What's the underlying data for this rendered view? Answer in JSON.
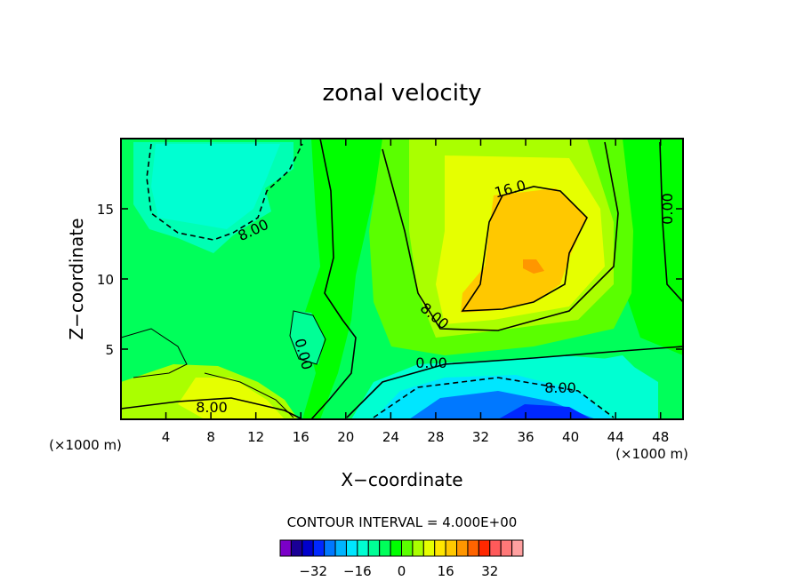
{
  "chart_data": {
    "type": "contour",
    "title": "zonal velocity",
    "xlabel": "X−coordinate",
    "ylabel": "Z−coordinate",
    "x_unit_left": "(×1000 m)",
    "x_unit_right": "(×1000 m)",
    "xlim": [
      0,
      50
    ],
    "ylim": [
      0,
      20
    ],
    "x_ticks": [
      4,
      8,
      12,
      16,
      20,
      24,
      28,
      32,
      36,
      40,
      44,
      48
    ],
    "y_ticks": [
      5,
      10,
      15
    ],
    "contour_interval_text": "CONTOUR INTERVAL = 4.000E+00",
    "contour_labels": [
      {
        "text": "16.0",
        "x": 33.8,
        "y": 16.0
      },
      {
        "text": "8.00",
        "x": 12.0,
        "y": 13.5
      },
      {
        "text": "8.00",
        "x": 27.2,
        "y": 7.3
      },
      {
        "text": "0.00",
        "x": 16.0,
        "y": 5.0
      },
      {
        "text": "0.00",
        "x": 27.6,
        "y": 4.0
      },
      {
        "text": "0.00",
        "x": 48.6,
        "y": 15.7
      },
      {
        "text": "8.00",
        "x": 39.0,
        "y": 2.3
      },
      {
        "text": "8.00",
        "x": 8.0,
        "y": 0.9
      }
    ],
    "colorbar": {
      "ticks": [
        "−32",
        "−16",
        "0",
        "16",
        "32"
      ],
      "colors": [
        "#7b00c8",
        "#1a0096",
        "#0000cc",
        "#0028ff",
        "#0078ff",
        "#00b4ff",
        "#00e6ff",
        "#00ffd2",
        "#00ff96",
        "#00ff5a",
        "#00ff00",
        "#5aff00",
        "#aaff00",
        "#e6ff00",
        "#ffe600",
        "#ffc800",
        "#ff9600",
        "#ff6400",
        "#ff2800",
        "#ff5a5a",
        "#ff7878",
        "#ffa0a0"
      ]
    }
  }
}
